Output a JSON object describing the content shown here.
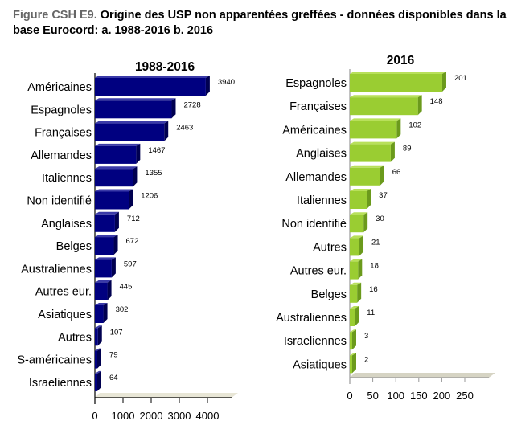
{
  "caption": {
    "figure_label": "Figure CSH E9.",
    "text": " Origine des USP non apparentées greffées - données disponibles dans la base Eurocord: a. 1988-2016  b. 2016"
  },
  "chart_data": [
    {
      "type": "bar",
      "orientation": "horizontal",
      "title": "1988-2016",
      "categories": [
        "Américaines",
        "Espagnoles",
        "Françaises",
        "Allemandes",
        "Italiennes",
        "Non identifié",
        "Anglaises",
        "Belges",
        "Australiennes",
        "Autres eur.",
        "Asiatiques",
        "Autres",
        "S-américaines",
        "Israeliennes"
      ],
      "values": [
        3940,
        2728,
        2463,
        1467,
        1355,
        1206,
        712,
        672,
        597,
        445,
        302,
        107,
        79,
        64
      ],
      "xticks": [
        0,
        1000,
        2000,
        3000,
        4000
      ],
      "xlim": [
        0,
        5000
      ],
      "xlabel": "",
      "ylabel": "",
      "grid": false,
      "colors": {
        "bar": "#000080",
        "bar_side": "#000050",
        "bar_top": "#3a3aa8",
        "axis": "#000000",
        "floor": "#e8e6d6"
      }
    },
    {
      "type": "bar",
      "orientation": "horizontal",
      "title": "2016",
      "categories": [
        "Espagnoles",
        "Françaises",
        "Américaines",
        "Anglaises",
        "Allemandes",
        "Italiennes",
        "Non identifié",
        "Autres",
        "Autres eur.",
        "Belges",
        "Australiennes",
        "Israeliennes",
        "Asiatiques"
      ],
      "values": [
        201,
        148,
        102,
        89,
        66,
        37,
        30,
        21,
        18,
        16,
        11,
        3,
        2
      ],
      "xticks": [
        0,
        50,
        100,
        150,
        200,
        250
      ],
      "xlim": [
        0,
        300
      ],
      "xlabel": "",
      "ylabel": "",
      "grid": false,
      "colors": {
        "bar": "#9acd32",
        "bar_side": "#6b9a1c",
        "bar_top": "#b8e05a",
        "axis": "#999999",
        "floor": "#d6d4c4"
      }
    }
  ]
}
